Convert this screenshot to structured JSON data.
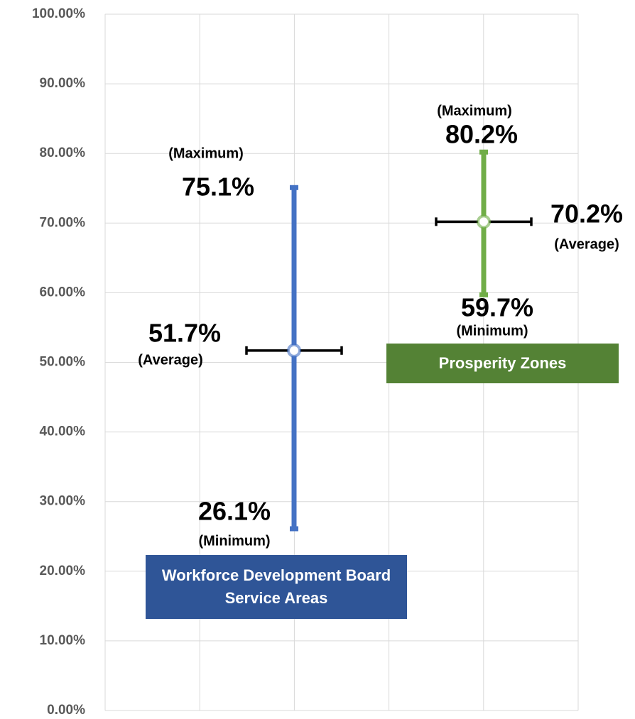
{
  "chart_data": {
    "type": "range",
    "ylim": [
      0,
      100
    ],
    "yticks": [
      {
        "value": 0,
        "label": "0.00%"
      },
      {
        "value": 10,
        "label": "10.00%"
      },
      {
        "value": 20,
        "label": "20.00%"
      },
      {
        "value": 30,
        "label": "30.00%"
      },
      {
        "value": 40,
        "label": "40.00%"
      },
      {
        "value": 50,
        "label": "50.00%"
      },
      {
        "value": 60,
        "label": "60.00%"
      },
      {
        "value": 70,
        "label": "70.00%"
      },
      {
        "value": 80,
        "label": "80.00%"
      },
      {
        "value": 90,
        "label": "90.00%"
      },
      {
        "value": 100,
        "label": "100.00%"
      }
    ],
    "grid": true,
    "series": [
      {
        "name": "Workforce Development Board Service Areas",
        "color": "#4472c4",
        "label_color": "#2f5597",
        "values": [
          26.1,
          51.7,
          75.1
        ],
        "value_labels": [
          "26.1%",
          "51.7%",
          "75.1%"
        ],
        "value_notes": [
          "(Minimum)",
          "(Average)",
          "(Maximum)"
        ]
      },
      {
        "name": "Prosperity Zones",
        "color": "#70ad47",
        "label_color": "#548235",
        "values": [
          59.7,
          70.2,
          80.2
        ],
        "value_labels": [
          "59.7%",
          "70.2%",
          "80.2%"
        ],
        "value_notes": [
          "(Minimum)",
          "(Average)",
          "(Maximum)"
        ]
      }
    ]
  }
}
